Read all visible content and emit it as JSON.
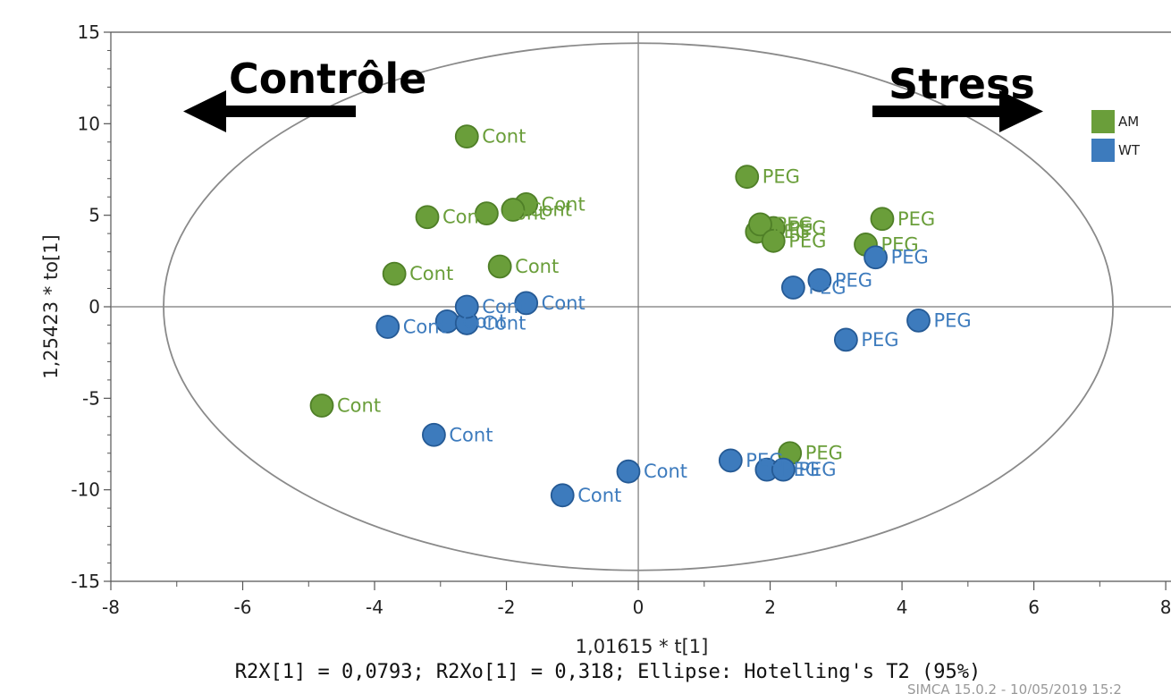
{
  "chart_data": {
    "type": "scatter",
    "xlabel": "1,01615 * t[1]",
    "ylabel": "1,25423 * to[1]",
    "xlim": [
      -8,
      8
    ],
    "ylim": [
      -15,
      15
    ],
    "x_ticks": [
      "-8",
      "-6",
      "-4",
      "-2",
      "0",
      "2",
      "4",
      "6",
      "8"
    ],
    "y_ticks": [
      "15",
      "10",
      "5",
      "0",
      "-5",
      "-10",
      "-15"
    ],
    "annotations": {
      "left": "Contrôle",
      "right": "Stress"
    },
    "footer": "R2X[1] = 0,0793; R2Xo[1] = 0,318; Ellipse: Hotelling's T2 (95%)",
    "credit": "SIMCA 15.0.2 - 10/05/2019 15:2",
    "ellipse": {
      "semi_axis_x": 7.2,
      "semi_axis_y": 14.4
    },
    "legend_position": "right",
    "series": [
      {
        "name": "AM",
        "color": "#6a9e3a",
        "points": [
          {
            "x": -2.6,
            "y": 9.3,
            "label": "Cont"
          },
          {
            "x": -1.7,
            "y": 5.6,
            "label": "Cont"
          },
          {
            "x": -1.9,
            "y": 5.3,
            "label": "Cont"
          },
          {
            "x": -2.3,
            "y": 5.1,
            "label": "Cont"
          },
          {
            "x": -3.2,
            "y": 4.9,
            "label": "Cont"
          },
          {
            "x": -2.1,
            "y": 2.2,
            "label": "Cont"
          },
          {
            "x": -3.7,
            "y": 1.8,
            "label": "Cont"
          },
          {
            "x": -4.8,
            "y": -5.4,
            "label": "Cont"
          },
          {
            "x": 1.65,
            "y": 7.1,
            "label": "PEG"
          },
          {
            "x": 2.05,
            "y": 4.3,
            "label": "PEG"
          },
          {
            "x": 1.8,
            "y": 4.1,
            "label": "PEG"
          },
          {
            "x": 1.85,
            "y": 4.5,
            "label": "PEG"
          },
          {
            "x": 2.05,
            "y": 3.6,
            "label": "PEG"
          },
          {
            "x": 3.7,
            "y": 4.8,
            "label": "PEG"
          },
          {
            "x": 3.45,
            "y": 3.4,
            "label": "PEG"
          },
          {
            "x": 2.3,
            "y": -8.0,
            "label": "PEG"
          }
        ]
      },
      {
        "name": "WT",
        "color": "#3d7bbd",
        "points": [
          {
            "x": -3.8,
            "y": -1.1,
            "label": "Cont"
          },
          {
            "x": -2.9,
            "y": -0.8,
            "label": "Cont"
          },
          {
            "x": -2.6,
            "y": -0.9,
            "label": "Cont"
          },
          {
            "x": -2.6,
            "y": 0.0,
            "label": "Cont"
          },
          {
            "x": -1.7,
            "y": 0.2,
            "label": "Cont"
          },
          {
            "x": -3.1,
            "y": -7.0,
            "label": "Cont"
          },
          {
            "x": -0.15,
            "y": -9.0,
            "label": "Cont"
          },
          {
            "x": -1.15,
            "y": -10.3,
            "label": "Cont"
          },
          {
            "x": 3.6,
            "y": 2.7,
            "label": "PEG"
          },
          {
            "x": 2.75,
            "y": 1.45,
            "label": "PEG"
          },
          {
            "x": 2.35,
            "y": 1.05,
            "label": "PEG"
          },
          {
            "x": 4.25,
            "y": -0.75,
            "label": "PEG"
          },
          {
            "x": 3.15,
            "y": -1.8,
            "label": "PEG"
          },
          {
            "x": 1.4,
            "y": -8.4,
            "label": "PEG"
          },
          {
            "x": 1.95,
            "y": -8.9,
            "label": "PEG"
          },
          {
            "x": 2.2,
            "y": -8.9,
            "label": "PEG"
          }
        ]
      }
    ]
  }
}
